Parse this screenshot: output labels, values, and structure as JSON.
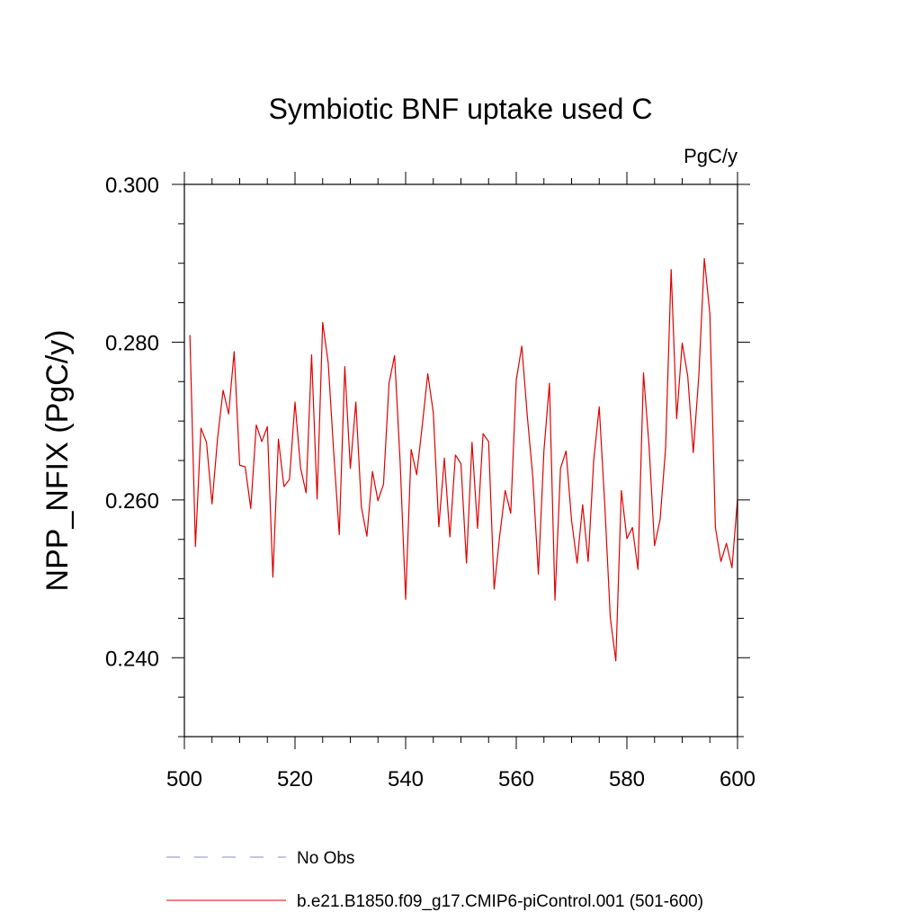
{
  "chart_data": {
    "type": "line",
    "title": "Symbiotic BNF uptake used C",
    "units": "PgC/y",
    "xlabel": "",
    "ylabel": "NPP_NFIX  (PgC/y)",
    "xlim": [
      500,
      600
    ],
    "ylim": [
      0.23,
      0.3
    ],
    "x_ticks": [
      500,
      520,
      540,
      560,
      580,
      600
    ],
    "x_tick_labels": [
      "500",
      "520",
      "540",
      "560",
      "580",
      "600"
    ],
    "x_minor_step": 5,
    "y_ticks": [
      0.24,
      0.26,
      0.28,
      0.3
    ],
    "y_tick_labels": [
      "0.240",
      "0.260",
      "0.280",
      "0.300"
    ],
    "y_minor_step": 0.005,
    "grid": false,
    "series": [
      {
        "name": "b.e21.B1850.f09_g17.CMIP6-piControl.001 (501-600)",
        "color": "#e00000",
        "style": "solid",
        "x": [
          501,
          502,
          503,
          504,
          505,
          506,
          507,
          508,
          509,
          510,
          511,
          512,
          513,
          514,
          515,
          516,
          517,
          518,
          519,
          520,
          521,
          522,
          523,
          524,
          525,
          526,
          527,
          528,
          529,
          530,
          531,
          532,
          533,
          534,
          535,
          536,
          537,
          538,
          539,
          540,
          541,
          542,
          543,
          544,
          545,
          546,
          547,
          548,
          549,
          550,
          551,
          552,
          553,
          554,
          555,
          556,
          557,
          558,
          559,
          560,
          561,
          562,
          563,
          564,
          565,
          566,
          567,
          568,
          569,
          570,
          571,
          572,
          573,
          574,
          575,
          576,
          577,
          578,
          579,
          580,
          581,
          582,
          583,
          584,
          585,
          586,
          587,
          588,
          589,
          590,
          591,
          592,
          593,
          594,
          595,
          596,
          597,
          598,
          599,
          600
        ],
        "values": [
          0.2809,
          0.2541,
          0.2691,
          0.2673,
          0.2595,
          0.2678,
          0.2739,
          0.2709,
          0.2788,
          0.2644,
          0.2642,
          0.2589,
          0.2695,
          0.2674,
          0.2693,
          0.2502,
          0.2677,
          0.2617,
          0.2626,
          0.2724,
          0.2641,
          0.2609,
          0.2784,
          0.2601,
          0.2825,
          0.2774,
          0.266,
          0.2556,
          0.2769,
          0.264,
          0.2724,
          0.2591,
          0.2554,
          0.2636,
          0.2599,
          0.262,
          0.2748,
          0.2783,
          0.2649,
          0.2474,
          0.2664,
          0.2632,
          0.2694,
          0.276,
          0.2711,
          0.2566,
          0.2653,
          0.2553,
          0.2657,
          0.2646,
          0.252,
          0.2673,
          0.2564,
          0.2684,
          0.2674,
          0.2487,
          0.2554,
          0.2612,
          0.2583,
          0.2752,
          0.2795,
          0.2706,
          0.2628,
          0.2506,
          0.2662,
          0.2748,
          0.2473,
          0.264,
          0.2662,
          0.2574,
          0.252,
          0.2594,
          0.2522,
          0.265,
          0.2718,
          0.2594,
          0.2451,
          0.2396,
          0.2612,
          0.2551,
          0.2565,
          0.2512,
          0.2761,
          0.2669,
          0.2542,
          0.2575,
          0.2666,
          0.2892,
          0.2703,
          0.2799,
          0.2757,
          0.266,
          0.2757,
          0.2906,
          0.2836,
          0.2565,
          0.2522,
          0.2545,
          0.2514,
          0.2601
        ]
      }
    ],
    "legend": [
      {
        "label": "No Obs",
        "color": "#8888cc",
        "style": "dashed"
      },
      {
        "label": "b.e21.B1850.f09_g17.CMIP6-piControl.001 (501-600)",
        "color": "#e00000",
        "style": "solid"
      }
    ],
    "legend_position": "bottom"
  }
}
